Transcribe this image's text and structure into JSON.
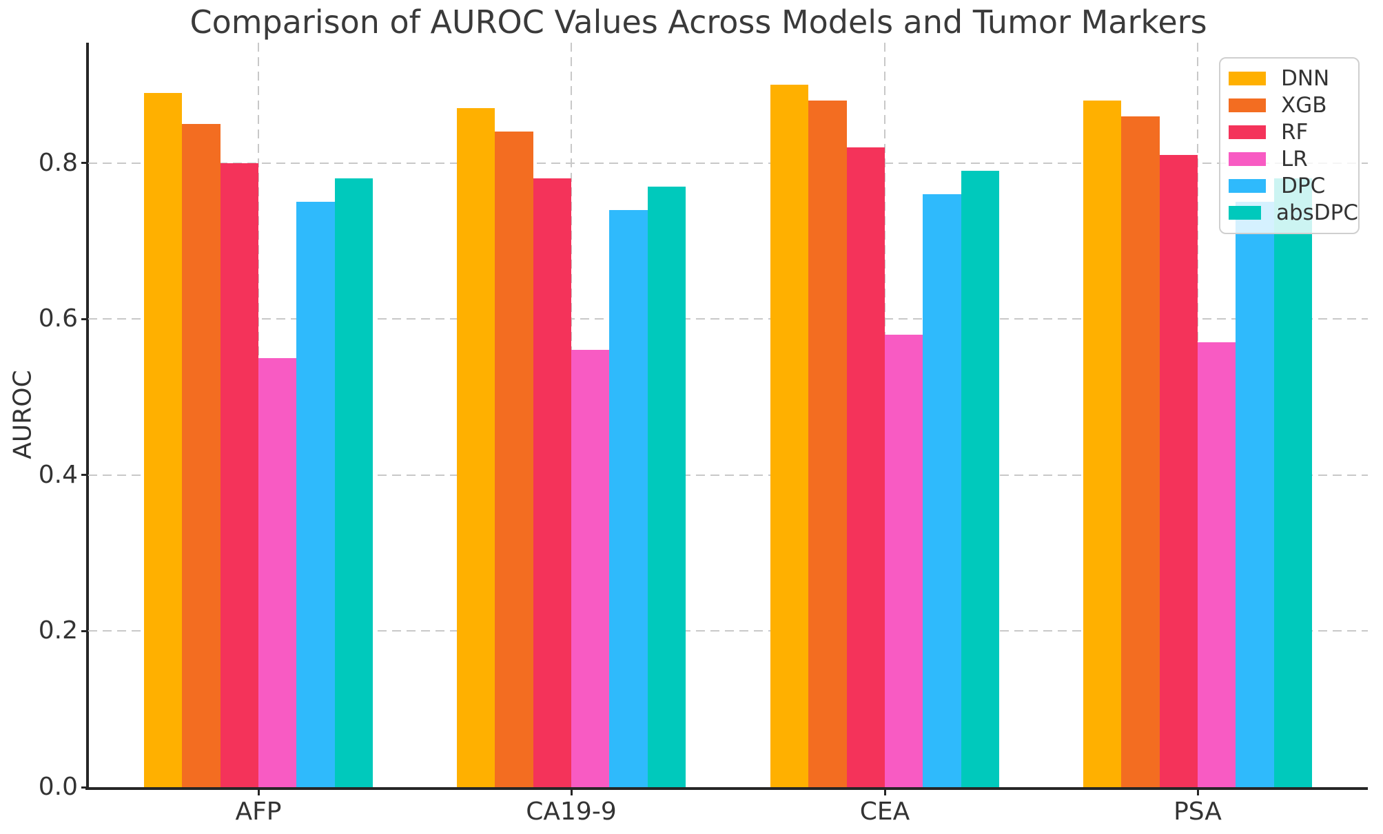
{
  "chart_data": {
    "type": "bar",
    "title": "Comparison of AUROC Values Across Models and Tumor Markers",
    "xlabel": "",
    "ylabel": "AUROC",
    "categories": [
      "AFP",
      "CA19-9",
      "CEA",
      "PSA"
    ],
    "series": [
      {
        "name": "DNN",
        "color": "#FFB000",
        "values": [
          0.89,
          0.87,
          0.9,
          0.88
        ]
      },
      {
        "name": "XGB",
        "color": "#F36D21",
        "values": [
          0.85,
          0.84,
          0.88,
          0.86
        ]
      },
      {
        "name": "RF",
        "color": "#F4335A",
        "values": [
          0.8,
          0.78,
          0.82,
          0.81
        ]
      },
      {
        "name": "LR",
        "color": "#F85BC3",
        "values": [
          0.55,
          0.56,
          0.58,
          0.57
        ]
      },
      {
        "name": "DPC",
        "color": "#2FBAFC",
        "values": [
          0.75,
          0.74,
          0.76,
          0.75
        ]
      },
      {
        "name": "absDPC",
        "color": "#00C9BC",
        "values": [
          0.78,
          0.77,
          0.79,
          0.78
        ]
      }
    ],
    "ytick_labels": [
      "0.0",
      "0.2",
      "0.4",
      "0.6",
      "0.8"
    ],
    "ytick_values": [
      0.0,
      0.2,
      0.4,
      0.6,
      0.8
    ],
    "ylim": [
      0,
      0.954
    ],
    "grid": {
      "style": "dashed",
      "horizontal_at": [
        0.2,
        0.4,
        0.6,
        0.8
      ],
      "vertical_at_category_centers": true
    },
    "legend": {
      "position": "upper right",
      "entries": [
        "DNN",
        "XGB",
        "RF",
        "LR",
        "DPC",
        "absDPC"
      ]
    }
  }
}
